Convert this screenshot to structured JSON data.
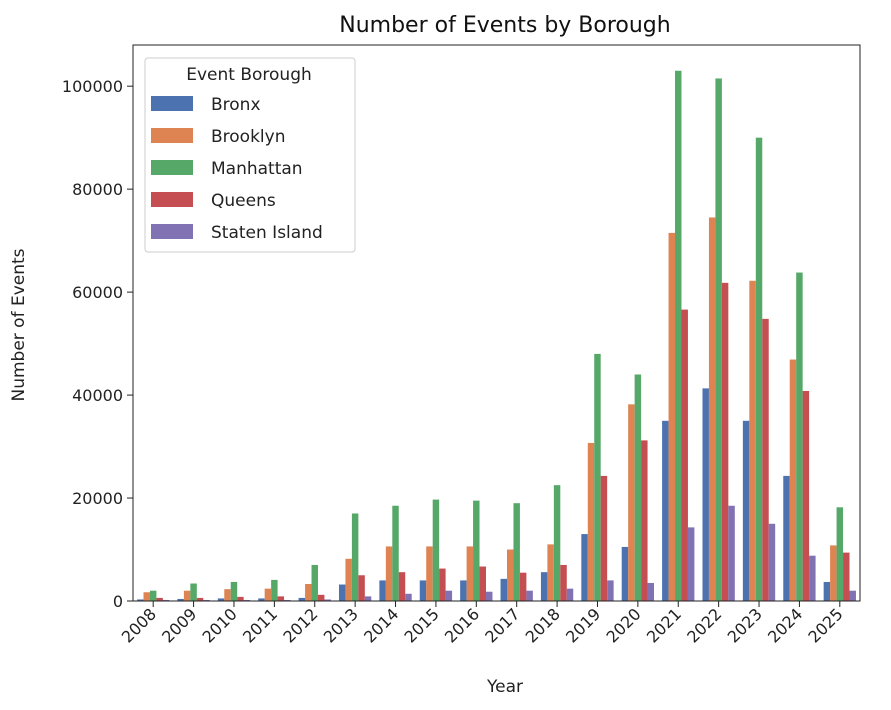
{
  "chart_data": {
    "type": "bar",
    "title": "Number of Events by Borough",
    "xlabel": "Year",
    "ylabel": "Number of Events",
    "ylim": [
      0,
      108000
    ],
    "yticks": [
      0,
      20000,
      40000,
      60000,
      80000,
      100000
    ],
    "grid": false,
    "legend": {
      "title": "Event Borough",
      "placement": "top-left"
    },
    "categories": [
      "2008",
      "2009",
      "2010",
      "2011",
      "2012",
      "2013",
      "2014",
      "2015",
      "2016",
      "2017",
      "2018",
      "2019",
      "2020",
      "2021",
      "2022",
      "2023",
      "2024",
      "2025"
    ],
    "series": [
      {
        "name": "Bronx",
        "color": "#4c72b0",
        "values": [
          300,
          400,
          500,
          500,
          600,
          3200,
          4000,
          4000,
          4000,
          4300,
          5600,
          13000,
          10500,
          35000,
          41300,
          35000,
          24300,
          3700
        ]
      },
      {
        "name": "Brooklyn",
        "color": "#dd8452",
        "values": [
          1700,
          2000,
          2300,
          2400,
          3300,
          8200,
          10600,
          10600,
          10600,
          10000,
          11000,
          30700,
          38200,
          71500,
          74500,
          62200,
          46900,
          10800
        ]
      },
      {
        "name": "Manhattan",
        "color": "#55a868",
        "values": [
          2000,
          3400,
          3700,
          4100,
          7000,
          17000,
          18500,
          19700,
          19500,
          19000,
          22500,
          48000,
          44000,
          103000,
          101500,
          90000,
          63800,
          18200
        ]
      },
      {
        "name": "Queens",
        "color": "#c44e52",
        "values": [
          600,
          600,
          800,
          900,
          1200,
          5000,
          5600,
          6300,
          6700,
          5500,
          7000,
          24300,
          31200,
          56600,
          61800,
          54800,
          40800,
          9400
        ]
      },
      {
        "name": "Staten Island",
        "color": "#8172b3",
        "values": [
          200,
          200,
          200,
          200,
          300,
          900,
          1400,
          2000,
          1800,
          2000,
          2400,
          4000,
          3500,
          14300,
          18500,
          15000,
          8800,
          2000
        ]
      }
    ]
  }
}
